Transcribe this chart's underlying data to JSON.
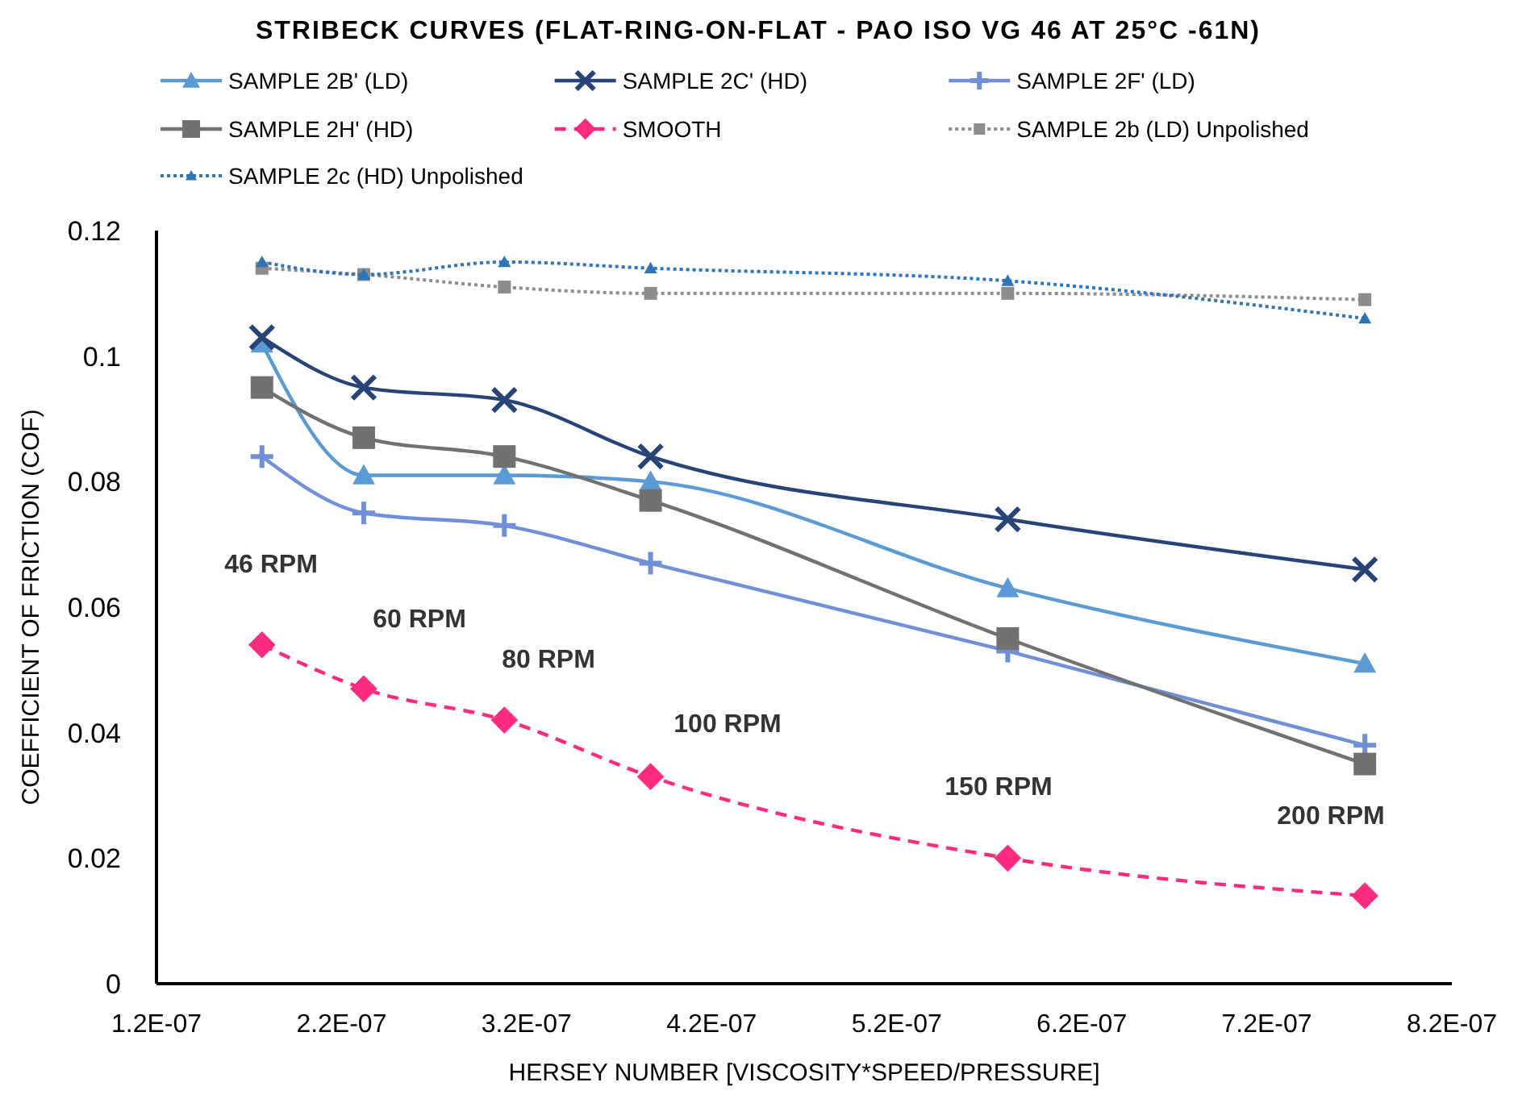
{
  "chart_data": {
    "type": "line",
    "title": "STRIBECK CURVES (FLAT-RING-ON-FLAT - PAO ISO VG 46 AT 25°C -61N)",
    "xlabel": "HERSEY NUMBER [VISCOSITY*SPEED/PRESSURE]",
    "ylabel": "COEFFICIENT OF FRICTION (COF)",
    "x": [
      1.77e-07,
      2.32e-07,
      3.08e-07,
      3.87e-07,
      5.8e-07,
      7.73e-07
    ],
    "series": [
      {
        "name": "SAMPLE 2B' (LD)",
        "color": "#5b9bd5",
        "marker": "triangle",
        "line_style": "solid",
        "values": [
          0.102,
          0.081,
          0.081,
          0.08,
          0.063,
          0.051
        ]
      },
      {
        "name": "SAMPLE 2C' (HD)",
        "color": "#264478",
        "marker": "cross",
        "line_style": "solid",
        "values": [
          0.103,
          0.095,
          0.093,
          0.084,
          0.074,
          0.066
        ]
      },
      {
        "name": "SAMPLE 2F' (LD)",
        "color": "#6f8fd8",
        "marker": "plus",
        "line_style": "solid",
        "values": [
          0.084,
          0.075,
          0.073,
          0.067,
          0.053,
          0.038
        ]
      },
      {
        "name": "SAMPLE 2H' (HD)",
        "color": "#717171",
        "marker": "square",
        "line_style": "solid",
        "values": [
          0.095,
          0.087,
          0.084,
          0.077,
          0.055,
          0.035
        ]
      },
      {
        "name": "SMOOTH",
        "color": "#ff2b7f",
        "marker": "diamond",
        "line_style": "dashed",
        "values": [
          0.054,
          0.047,
          0.042,
          0.033,
          0.02,
          0.014
        ]
      },
      {
        "name": "SAMPLE 2b (LD) Unpolished",
        "color": "#8c8c8c",
        "marker": "square",
        "line_style": "dotted",
        "values": [
          0.114,
          0.113,
          0.111,
          0.11,
          0.11,
          0.109
        ]
      },
      {
        "name": "SAMPLE 2c (HD) Unpolished",
        "color": "#2e75b6",
        "marker": "triangle",
        "line_style": "dotted",
        "values": [
          0.115,
          0.113,
          0.115,
          0.114,
          0.112,
          0.106
        ]
      }
    ],
    "xlim": [
      1.2e-07,
      8.2e-07
    ],
    "xticks": [
      {
        "value": 1.2e-07,
        "label": "1.2E-07"
      },
      {
        "value": 2.2e-07,
        "label": "2.2E-07"
      },
      {
        "value": 3.2e-07,
        "label": "3.2E-07"
      },
      {
        "value": 4.2e-07,
        "label": "4.2E-07"
      },
      {
        "value": 5.2e-07,
        "label": "5.2E-07"
      },
      {
        "value": 6.2e-07,
        "label": "6.2E-07"
      },
      {
        "value": 7.2e-07,
        "label": "7.2E-07"
      },
      {
        "value": 8.2e-07,
        "label": "8.2E-07"
      }
    ],
    "ylim": [
      0,
      0.12
    ],
    "yticks": [
      0,
      0.02,
      0.04,
      0.06,
      0.08,
      0.1,
      0.12
    ],
    "annotations": [
      "46 RPM",
      "60 RPM",
      "80 RPM",
      "100 RPM",
      "150 RPM",
      "200 RPM"
    ],
    "legend": "top",
    "grid": false
  }
}
